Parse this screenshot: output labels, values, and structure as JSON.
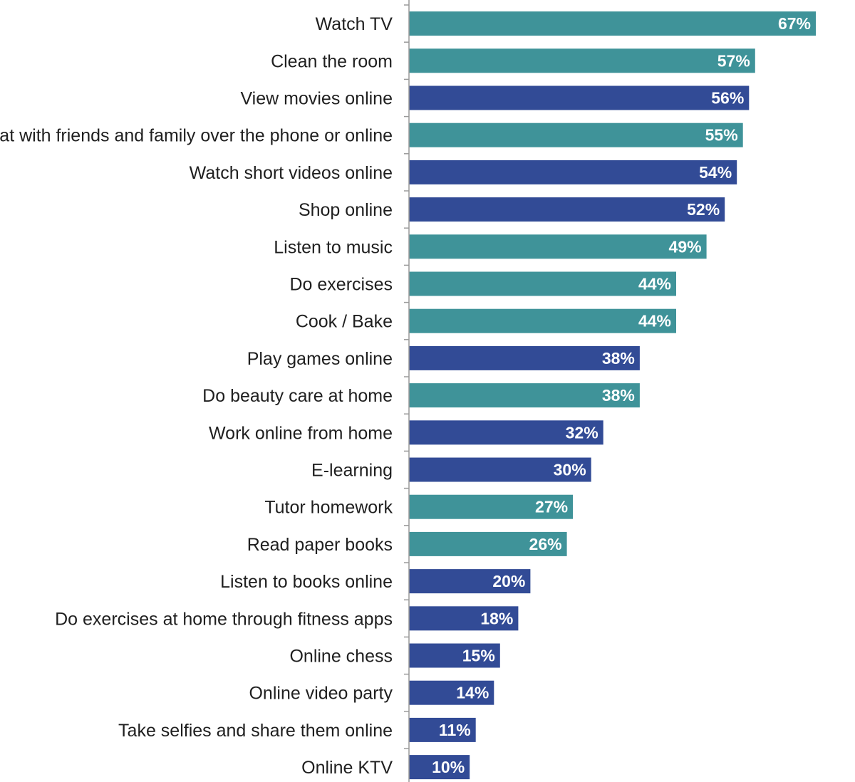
{
  "chart_data": {
    "type": "bar",
    "orientation": "horizontal",
    "title": "",
    "xlabel": "",
    "ylabel": "",
    "xlim": [
      0,
      67
    ],
    "grid": false,
    "legend": "none",
    "colors": {
      "teal": "#3f9399",
      "navy": "#324b96"
    },
    "categories": [
      "Watch TV",
      "Clean the room",
      "View movies online",
      "Chat with friends and family over the phone or online",
      "Watch short videos online",
      "Shop online",
      "Listen to music",
      "Do exercises",
      "Cook / Bake",
      "Play games online",
      "Do beauty care at home",
      "Work online from home",
      "E-learning",
      "Tutor homework",
      "Read paper books",
      "Listen to books online",
      "Do exercises at home through fitness apps",
      "Online chess",
      "Online video party",
      "Take selfies and share them online",
      "Online KTV"
    ],
    "values": [
      67,
      57,
      56,
      55,
      54,
      52,
      49,
      44,
      44,
      38,
      38,
      32,
      30,
      27,
      26,
      20,
      18,
      15,
      14,
      11,
      10
    ],
    "value_labels": [
      "67%",
      "57%",
      "56%",
      "55%",
      "54%",
      "52%",
      "49%",
      "44%",
      "44%",
      "38%",
      "38%",
      "32%",
      "30%",
      "27%",
      "26%",
      "20%",
      "18%",
      "15%",
      "14%",
      "11%",
      "10%"
    ],
    "bar_color_keys": [
      "teal",
      "teal",
      "navy",
      "teal",
      "navy",
      "navy",
      "teal",
      "teal",
      "teal",
      "navy",
      "teal",
      "navy",
      "navy",
      "teal",
      "teal",
      "navy",
      "navy",
      "navy",
      "navy",
      "navy",
      "navy"
    ]
  }
}
